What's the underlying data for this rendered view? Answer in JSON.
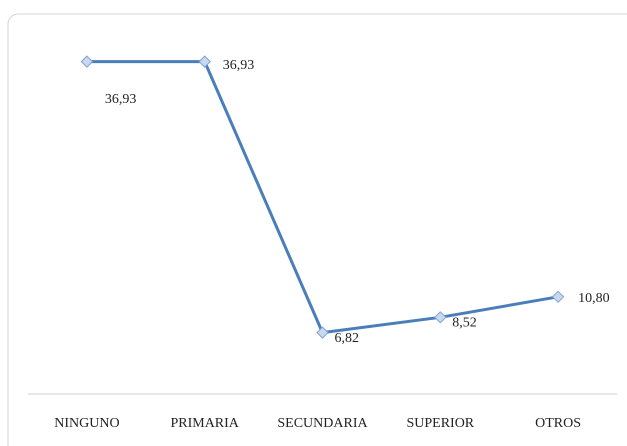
{
  "chart_data": {
    "type": "line",
    "categories": [
      "NINGUNO",
      "PRIMARIA",
      "SECUNDARIA",
      "SUPERIOR",
      "OTROS"
    ],
    "values": [
      36.93,
      36.93,
      6.82,
      8.52,
      10.8
    ],
    "value_labels": [
      "36,93",
      "36,93",
      "6,82",
      "8,52",
      "10,80"
    ],
    "color": "#4a7ebb",
    "ylim": [
      0,
      40
    ]
  }
}
